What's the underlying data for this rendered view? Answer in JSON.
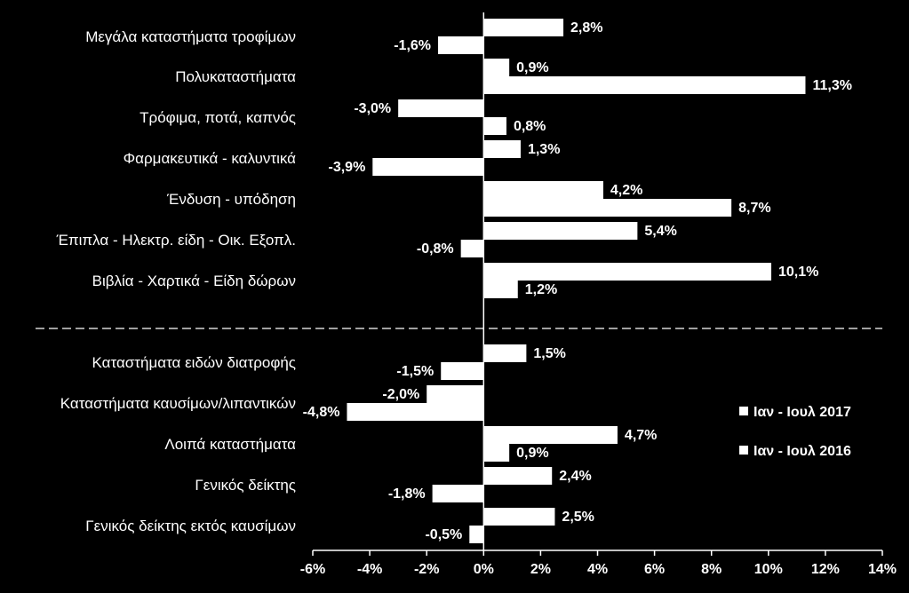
{
  "chart_data": {
    "type": "bar",
    "orientation": "horizontal",
    "categories": [
      "Μεγάλα καταστήματα τροφίμων",
      "Πολυκαταστήματα",
      "Τρόφιμα, ποτά, καπνός",
      "Φαρμακευτικά - καλυντικά",
      "Ένδυση - υπόδηση",
      "Έπιπλα - Ηλεκτρ. είδη - Οικ. Εξοπλ.",
      "Βιβλία - Χαρτικά - Είδη δώρων",
      "Καταστήματα ειδών διατροφής",
      "Καταστήματα καυσίμων/λιπαντικών",
      "Λοιπά καταστήματα",
      "Γενικός δείκτης",
      "Γενικός δείκτης εκτός καυσίμων"
    ],
    "series": [
      {
        "name": "Ιαν - Ιουλ 2017",
        "values": [
          2.8,
          0.9,
          -3.0,
          1.3,
          4.2,
          5.4,
          10.1,
          1.5,
          -2.0,
          4.7,
          2.4,
          2.5
        ],
        "labels": [
          "2,8%",
          "0,9%",
          "-3,0%",
          "1,3%",
          "4,2%",
          "5,4%",
          "10,1%",
          "1,5%",
          "-2,0%",
          "4,7%",
          "2,4%",
          "2,5%"
        ]
      },
      {
        "name": "Ιαν - Ιουλ 2016",
        "values": [
          -1.6,
          11.3,
          0.8,
          -3.9,
          8.7,
          -0.8,
          1.2,
          -1.5,
          -4.8,
          0.9,
          -1.8,
          -0.5
        ],
        "labels": [
          "-1,6%",
          "11,3%",
          "0,8%",
          "-3,9%",
          "8,7%",
          "-0,8%",
          "1,2%",
          "-1,5%",
          "-4,8%",
          "0,9%",
          "-1,8%",
          "-0,5%"
        ]
      }
    ],
    "xlim": [
      -6,
      14
    ],
    "x_ticks": [
      "-6%",
      "-4%",
      "-2%",
      "0%",
      "2%",
      "4%",
      "6%",
      "8%",
      "10%",
      "12%",
      "14%"
    ],
    "separator_after_index": 6,
    "legend_position": "right",
    "grid": false,
    "colors": {
      "background": "#000000",
      "bars": "#ffffff",
      "text": "#ffffff"
    }
  }
}
